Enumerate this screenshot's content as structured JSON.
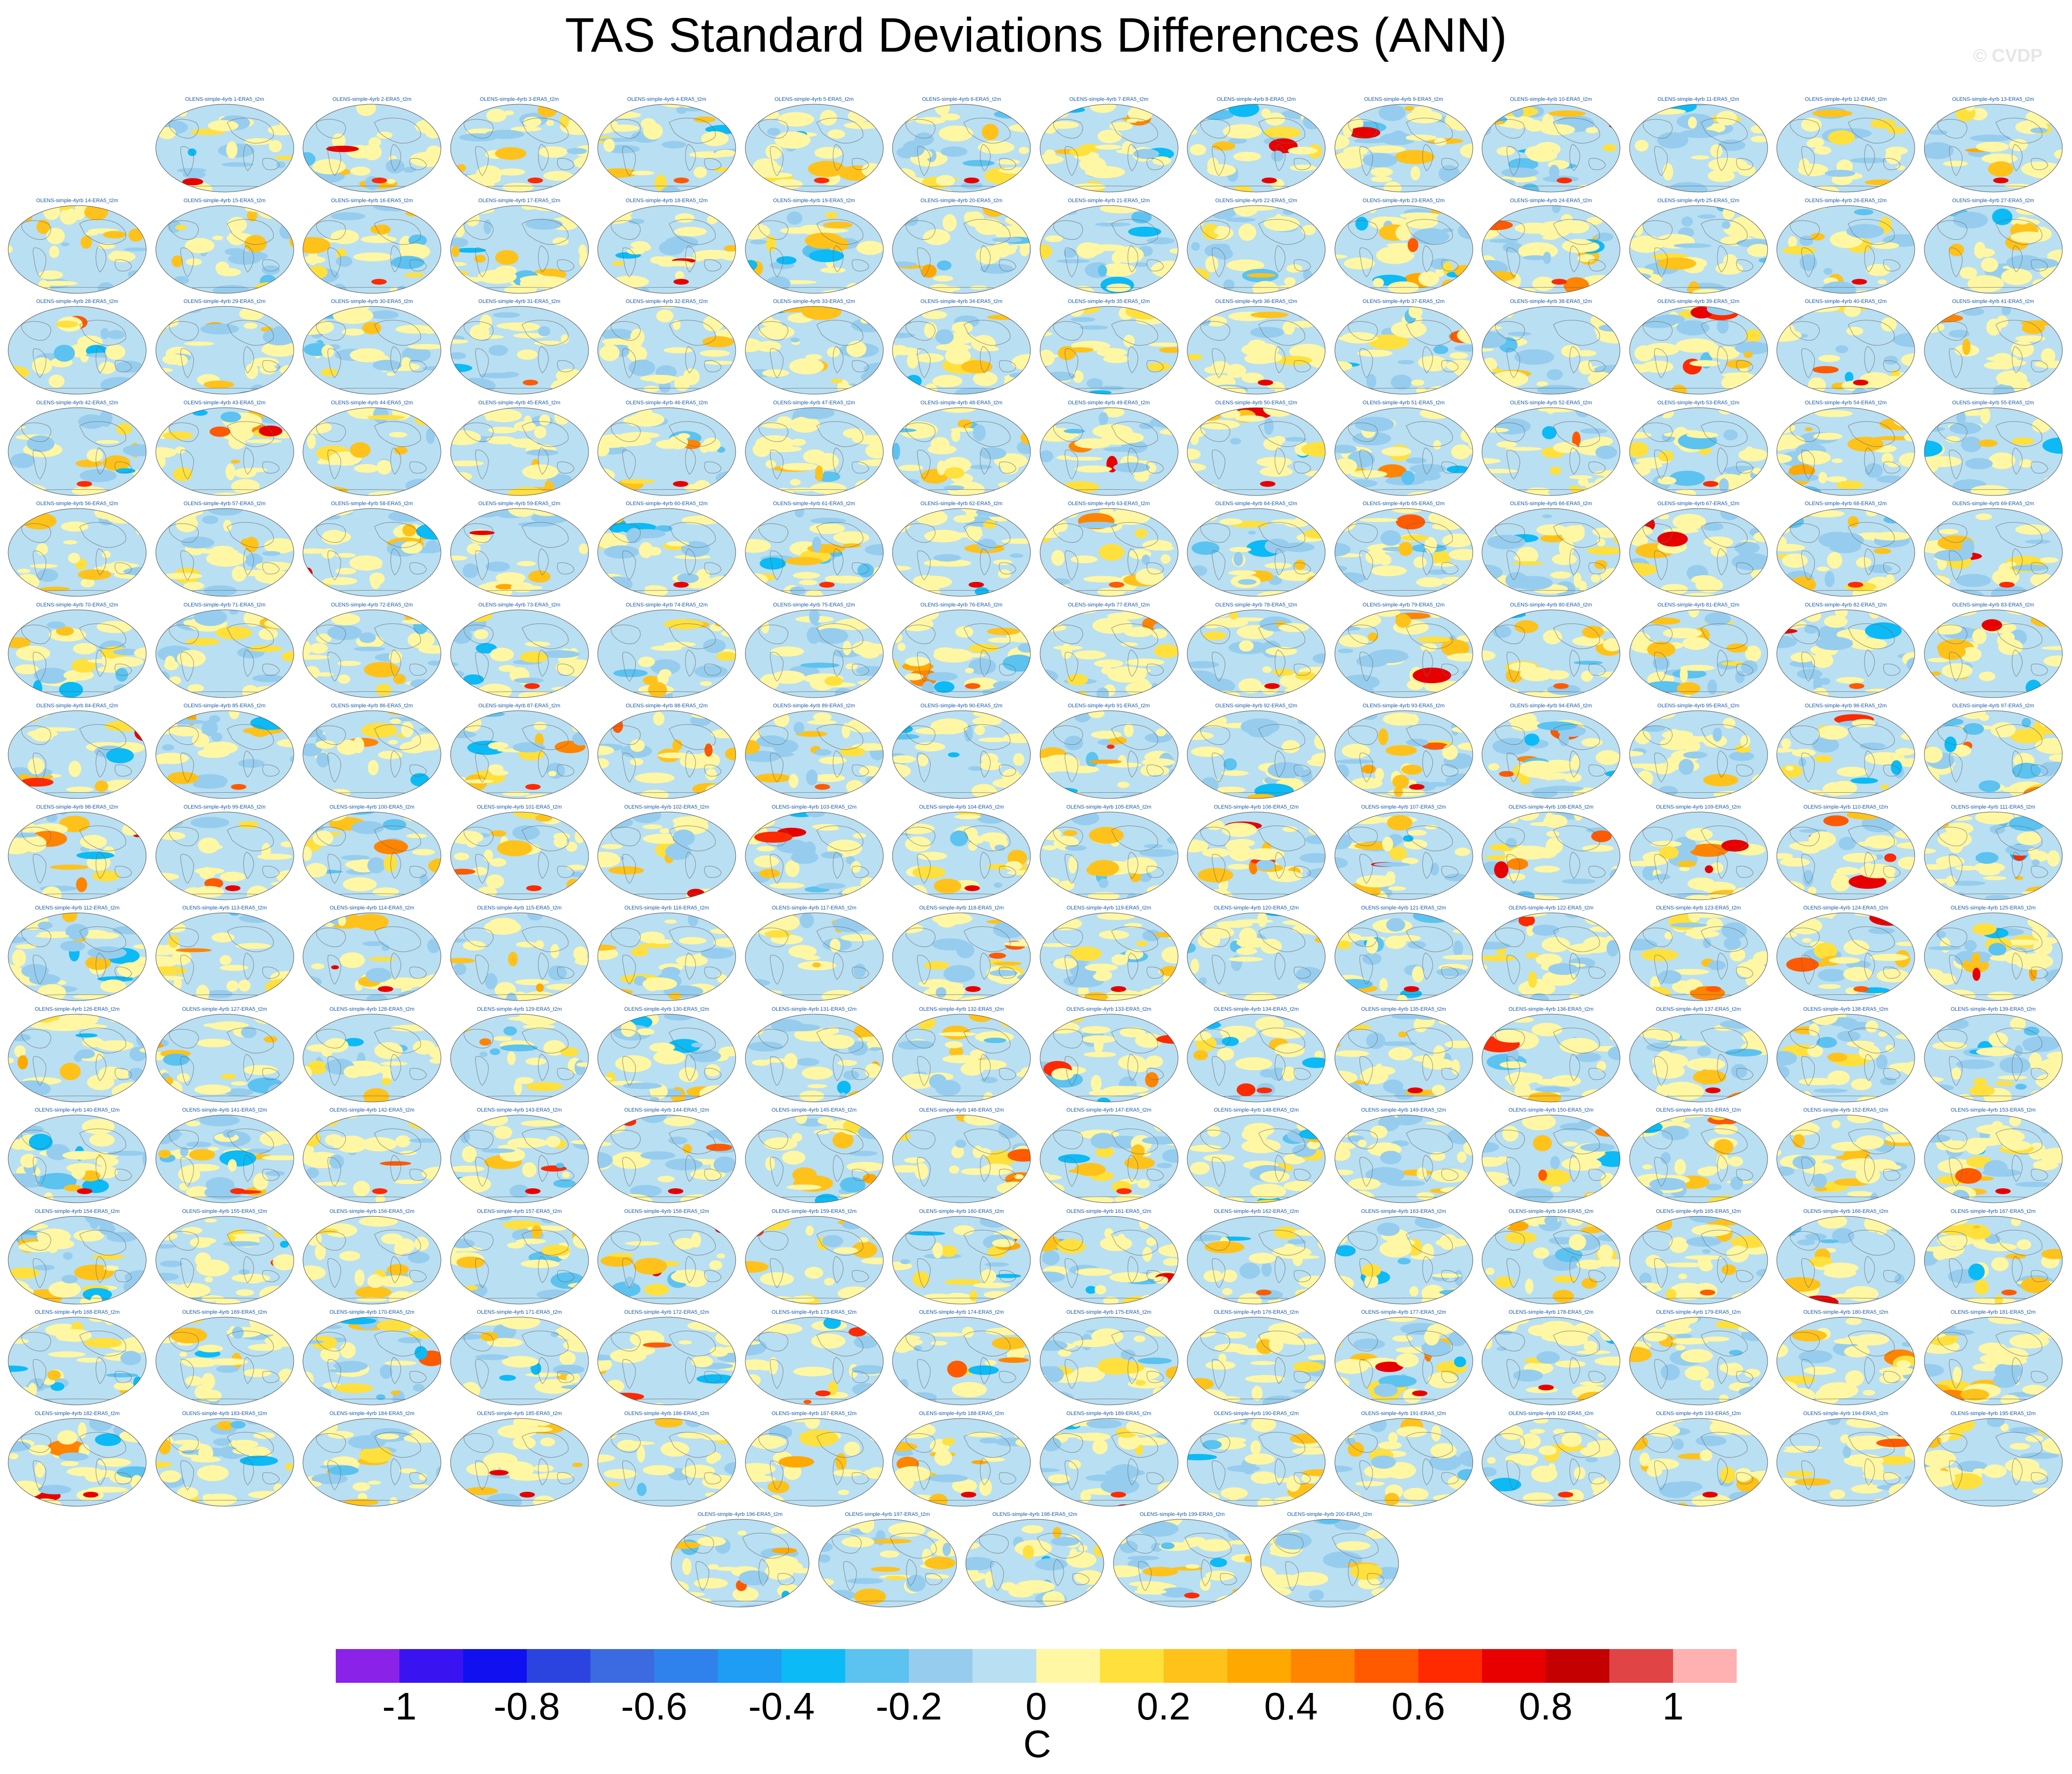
{
  "title": "TAS Standard Deviations Differences (ANN)",
  "watermark": "© CVDP",
  "chart_data": {
    "type": "heatmap",
    "title": "TAS Standard Deviations Differences (ANN)",
    "panel_label_prefix": "OLENS-simple-4yrb ",
    "panel_label_suffix": "-ERA5_t2m",
    "panel_count": 200,
    "panel_rows": [
      13,
      14,
      14,
      14,
      14,
      14,
      14,
      14,
      14,
      14,
      14,
      14,
      14,
      14,
      5
    ],
    "projection": "global ellipse (Robinson-like), Pacific-centered",
    "colorbar": {
      "levels": [
        -1.1,
        -1.0,
        -0.9,
        -0.8,
        -0.7,
        -0.6,
        -0.5,
        -0.4,
        -0.3,
        -0.2,
        -0.1,
        0,
        0.1,
        0.2,
        0.3,
        0.4,
        0.5,
        0.6,
        0.7,
        0.8,
        0.9,
        1.0,
        1.1
      ],
      "colors": [
        "#8b22e8",
        "#3a14f0",
        "#1010f0",
        "#2b44e0",
        "#3c6ae0",
        "#2f82ec",
        "#1f9cf4",
        "#0cbaf6",
        "#5cc2f0",
        "#96cdee",
        "#b9dff2",
        "#fff7a3",
        "#ffe03d",
        "#ffc21a",
        "#ffa800",
        "#ff8400",
        "#ff5a00",
        "#ff2a00",
        "#e80000",
        "#c40000",
        "#e04444",
        "#ffb0b0"
      ],
      "tick_labels": [
        "-1",
        "-0.8",
        "-0.6",
        "-0.4",
        "-0.2",
        "0",
        "0.2",
        "0.4",
        "0.6",
        "0.8",
        "1"
      ],
      "tick_values": [
        -1,
        -0.8,
        -0.6,
        -0.4,
        -0.2,
        0,
        0.2,
        0.4,
        0.6,
        0.8,
        1
      ],
      "unit": "C"
    },
    "field_description_range": [
      -1.1,
      1.1
    ]
  }
}
